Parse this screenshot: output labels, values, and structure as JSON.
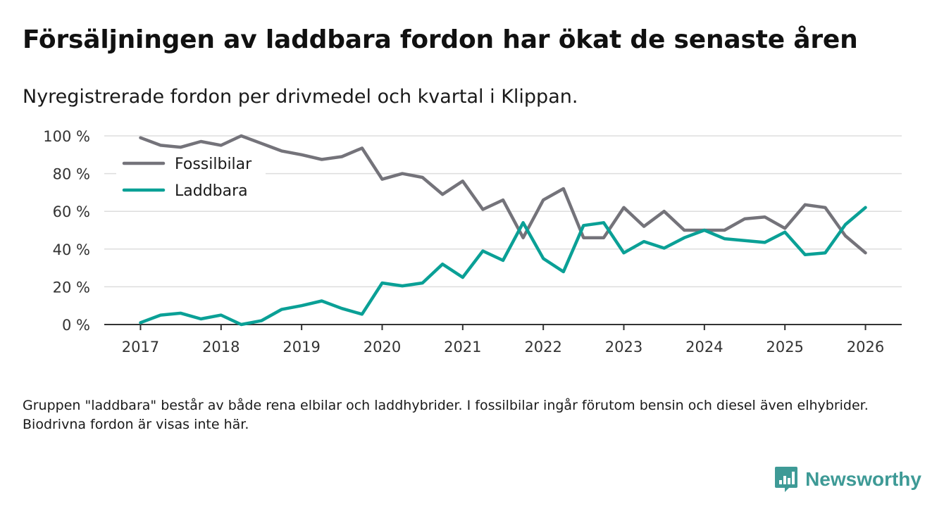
{
  "title": "Försäljningen av laddbara fordon har ökat de senaste åren",
  "subtitle": "Nyregistrerade fordon per drivmedel och kvartal i Klippan.",
  "footnote": "Gruppen \"laddbara\" består av både rena elbilar och laddhybrider. I fossilbilar ingår förutom bensin och diesel även elhybrider. Biodrivna fordon är visas inte här.",
  "brand": {
    "name": "Newsworthy",
    "logo_icon": "bar-chart-chat-icon",
    "color": "#3e9a96"
  },
  "chart_data": {
    "type": "line",
    "x": [
      2017.0,
      2017.25,
      2017.5,
      2017.75,
      2018.0,
      2018.25,
      2018.5,
      2018.75,
      2019.0,
      2019.25,
      2019.5,
      2019.75,
      2020.0,
      2020.25,
      2020.5,
      2020.75,
      2021.0,
      2021.25,
      2021.5,
      2021.75,
      2022.0,
      2022.25,
      2022.5,
      2022.75,
      2023.0,
      2023.25,
      2023.5,
      2023.75,
      2024.0,
      2024.25,
      2024.5,
      2024.75,
      2025.0,
      2025.25,
      2025.5,
      2025.75,
      2026.0
    ],
    "series": [
      {
        "name": "Fossilbilar",
        "color": "#74737a",
        "values": [
          99,
          95,
          94,
          97,
          95,
          100,
          96,
          92,
          90,
          87.5,
          89,
          93.5,
          77,
          80,
          78,
          69,
          76,
          61,
          66,
          46,
          66,
          72,
          46,
          46,
          62,
          52,
          60,
          50,
          50,
          50,
          56,
          57,
          51,
          63.5,
          62,
          47,
          38
        ]
      },
      {
        "name": "Laddbara",
        "color": "#0aa096",
        "values": [
          1,
          5,
          6,
          3,
          5,
          0,
          2,
          8,
          10,
          12.5,
          8.5,
          5.5,
          22,
          20.5,
          22,
          32,
          25,
          39,
          34,
          54,
          35,
          28,
          52.5,
          54,
          38,
          44,
          40.5,
          46,
          50,
          45.5,
          44.5,
          43.5,
          49,
          37,
          38,
          53,
          62
        ]
      }
    ],
    "x_ticks": [
      "2017",
      "2018",
      "2019",
      "2020",
      "2021",
      "2022",
      "2023",
      "2024",
      "2025",
      "2026"
    ],
    "y_ticks": [
      "0 %",
      "20 %",
      "40 %",
      "60 %",
      "80 %",
      "100 %"
    ],
    "xlim": [
      2016.55,
      2026.45
    ],
    "ylim": [
      0,
      100
    ],
    "grid": true,
    "legend_position": "top-left",
    "xlabel": "",
    "ylabel": ""
  }
}
